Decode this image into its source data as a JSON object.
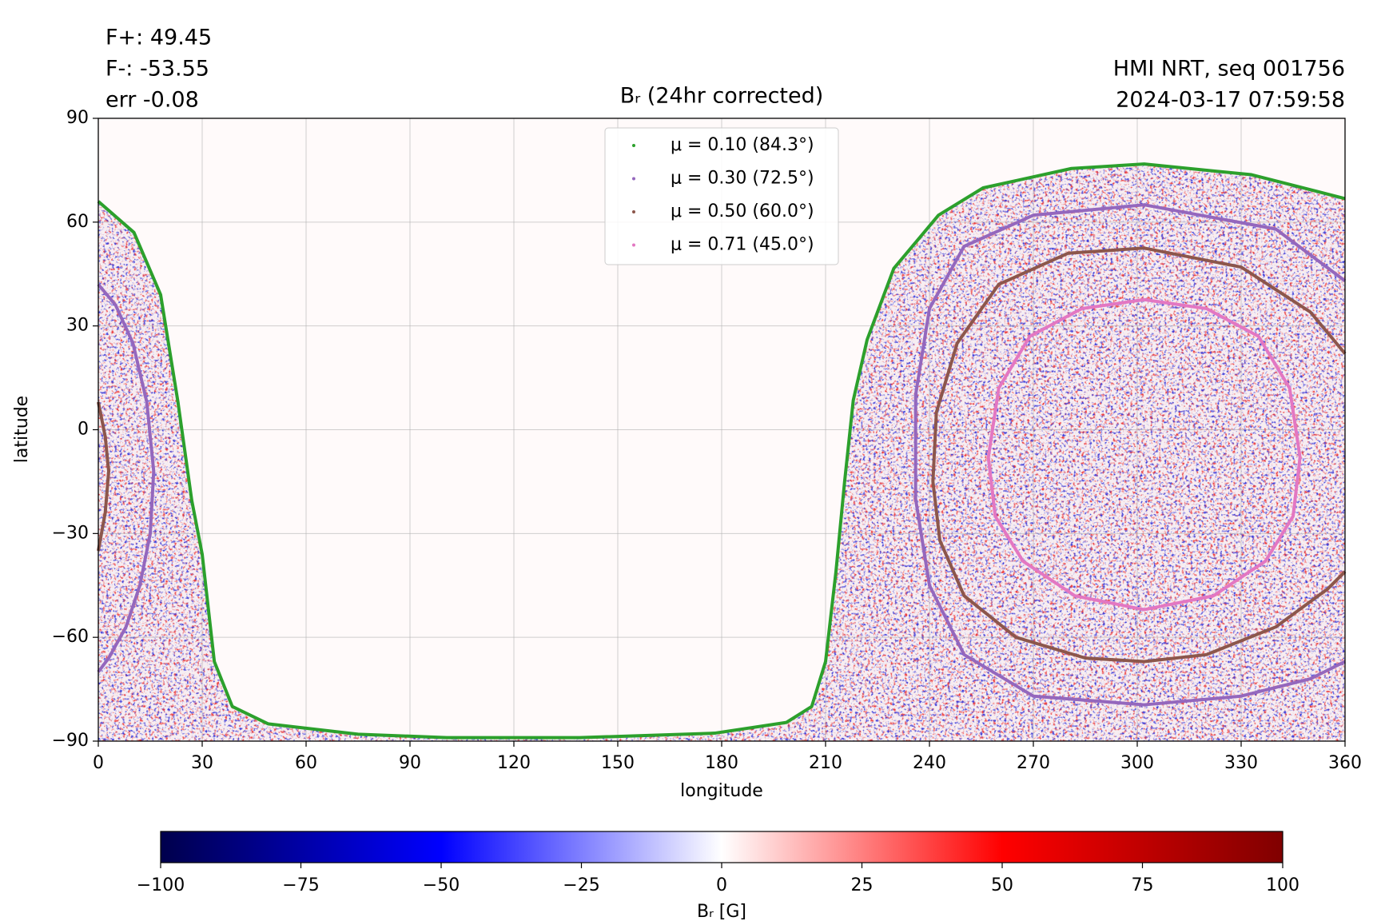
{
  "chart_data": {
    "type": "line",
    "title": "Bᵣ (24hr corrected)",
    "annotations_left": [
      "F+: 49.45",
      "F-: -53.55",
      "err -0.08"
    ],
    "annotations_right": [
      "HMI NRT, seq 001756",
      "2024-03-17 07:59:58"
    ],
    "x_label": "longitude",
    "y_label": "latitude",
    "xlim": [
      0,
      360
    ],
    "ylim": [
      -90,
      90
    ],
    "xticks": [
      0,
      30,
      60,
      90,
      120,
      150,
      180,
      210,
      240,
      270,
      300,
      330,
      360
    ],
    "yticks": [
      {
        "value": -90,
        "label": "−90"
      },
      {
        "value": -60,
        "label": "−60"
      },
      {
        "value": -30,
        "label": "−30"
      },
      0,
      30,
      60,
      90
    ],
    "grid": true,
    "legend": "upper center",
    "series": [
      {
        "name": "μ = 0.10 (84.3°)",
        "color": "#2ca02c",
        "x": [
          0,
          10.3,
          18,
          23,
          27,
          30,
          33.5,
          38.7,
          49,
          75,
          100.6,
          139,
          178,
          198.7,
          206,
          210,
          213,
          215.5,
          218,
          222,
          229.7,
          242.6,
          255.5,
          281,
          302,
          333,
          360
        ],
        "values": [
          66,
          57,
          39,
          8,
          -20.5,
          -36,
          -67,
          -80,
          -85,
          -88,
          -89,
          -89,
          -87.7,
          -84.6,
          -80,
          -67,
          -41,
          -15,
          8.5,
          26,
          46.6,
          62,
          69.9,
          75.5,
          76.8,
          73.7,
          66.8
        ]
      },
      {
        "name": "μ = 0.30 (72.5°)",
        "color": "#9467bd",
        "x": [
          0,
          5,
          10,
          14,
          16,
          15,
          12,
          8,
          3,
          0,
          null,
          360,
          340,
          302,
          270,
          250,
          240,
          236,
          236,
          240,
          250,
          270,
          302,
          330,
          350,
          360
        ],
        "values": [
          42,
          36,
          25,
          8,
          -12,
          -30,
          -45,
          -57,
          -66,
          -70,
          null,
          43,
          58,
          65,
          62,
          53,
          35,
          10,
          -20,
          -45,
          -65,
          -77,
          -79.5,
          -77,
          -72,
          -67
        ]
      },
      {
        "name": "μ = 0.50 (60.0°)",
        "color": "#8c564b",
        "x": [
          0,
          2,
          3,
          2,
          0,
          null,
          360,
          350,
          330,
          302,
          280,
          260,
          248,
          242,
          241,
          243,
          250,
          265,
          285,
          302,
          320,
          340,
          355,
          360
        ],
        "values": [
          8,
          -2,
          -12,
          -24,
          -35,
          null,
          22,
          34,
          47,
          52.5,
          51,
          42,
          25,
          5,
          -15,
          -32,
          -48,
          -60,
          -66,
          -67,
          -65,
          -57,
          -46,
          -41
        ]
      },
      {
        "name": "μ = 0.71 (45.0°)",
        "color": "#e377c2",
        "x": [
          302,
          320,
          335,
          344,
          347,
          345,
          337,
          322,
          302,
          282,
          267,
          259,
          257,
          260,
          269,
          284,
          302
        ],
        "values": [
          37.6,
          35,
          27,
          12,
          -8,
          -25,
          -38,
          -48,
          -52,
          -48,
          -38,
          -25,
          -8,
          12,
          27,
          35,
          37.6
        ]
      }
    ],
    "colorbar": {
      "label": "Bᵣ [G]",
      "colormap": "seismic",
      "lim": [
        -100,
        100
      ],
      "ticks": [
        {
          "value": -100,
          "label": "−100"
        },
        {
          "value": -75,
          "label": "−75"
        },
        {
          "value": -50,
          "label": "−50"
        },
        {
          "value": -25,
          "label": "−25"
        },
        0,
        25,
        50,
        75,
        100
      ]
    }
  }
}
